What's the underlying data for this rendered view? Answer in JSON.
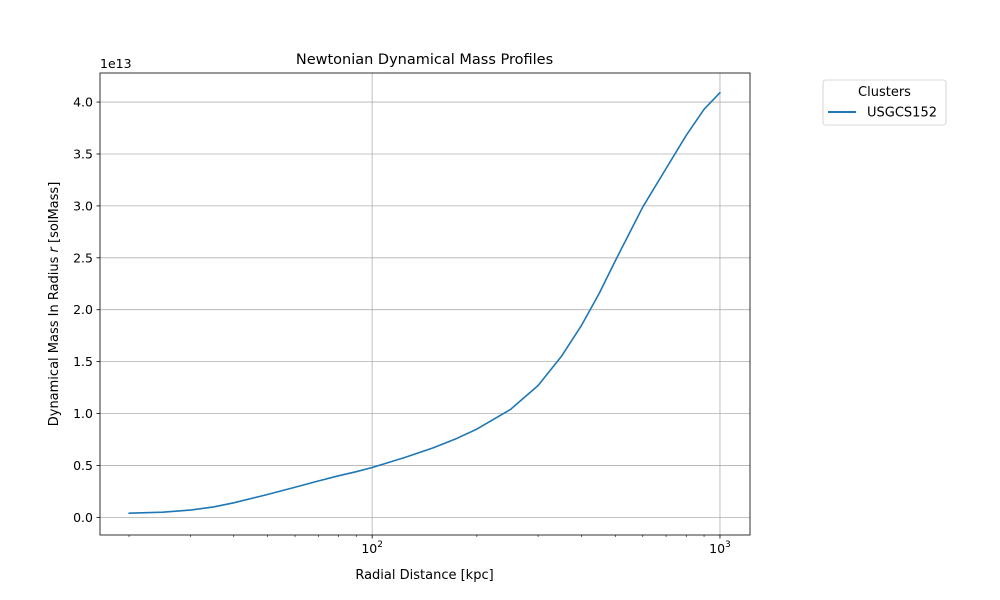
{
  "chart_data": {
    "type": "line",
    "title": "Newtonian Dynamical Mass Profiles",
    "xlabel": "Radial Distance [kpc]",
    "ylabel_prefix": "Dynamical Mass In Radius ",
    "ylabel_var": "r",
    "ylabel_suffix": " [solMass]",
    "y_offset_label": "1e13",
    "xscale": "log",
    "xlim": [
      16.5,
      1220
    ],
    "ylim": [
      -0.17,
      4.28
    ],
    "x_ticks": [
      {
        "value": 100,
        "base": "10",
        "exp": "2"
      },
      {
        "value": 1000,
        "base": "10",
        "exp": "3"
      }
    ],
    "y_ticks": [
      0.0,
      0.5,
      1.0,
      1.5,
      2.0,
      2.5,
      3.0,
      3.5,
      4.0
    ],
    "y_tick_labels": [
      "0.0",
      "0.5",
      "1.0",
      "1.5",
      "2.0",
      "2.5",
      "3.0",
      "3.5",
      "4.0"
    ],
    "grid": true,
    "legend": {
      "title": "Clusters",
      "placement": "outside-top-right"
    },
    "series": [
      {
        "name": "USGCS152",
        "color": "#1f77b4",
        "x": [
          20,
          25,
          30,
          35,
          40,
          50,
          60,
          70,
          80,
          90,
          100,
          125,
          150,
          175,
          200,
          250,
          300,
          350,
          400,
          450,
          500,
          600,
          700,
          800,
          900,
          1000
        ],
        "y": [
          0.04,
          0.05,
          0.07,
          0.1,
          0.14,
          0.22,
          0.29,
          0.35,
          0.4,
          0.44,
          0.48,
          0.58,
          0.67,
          0.76,
          0.85,
          1.04,
          1.27,
          1.55,
          1.85,
          2.16,
          2.47,
          2.99,
          3.36,
          3.68,
          3.93,
          4.09
        ]
      }
    ]
  }
}
